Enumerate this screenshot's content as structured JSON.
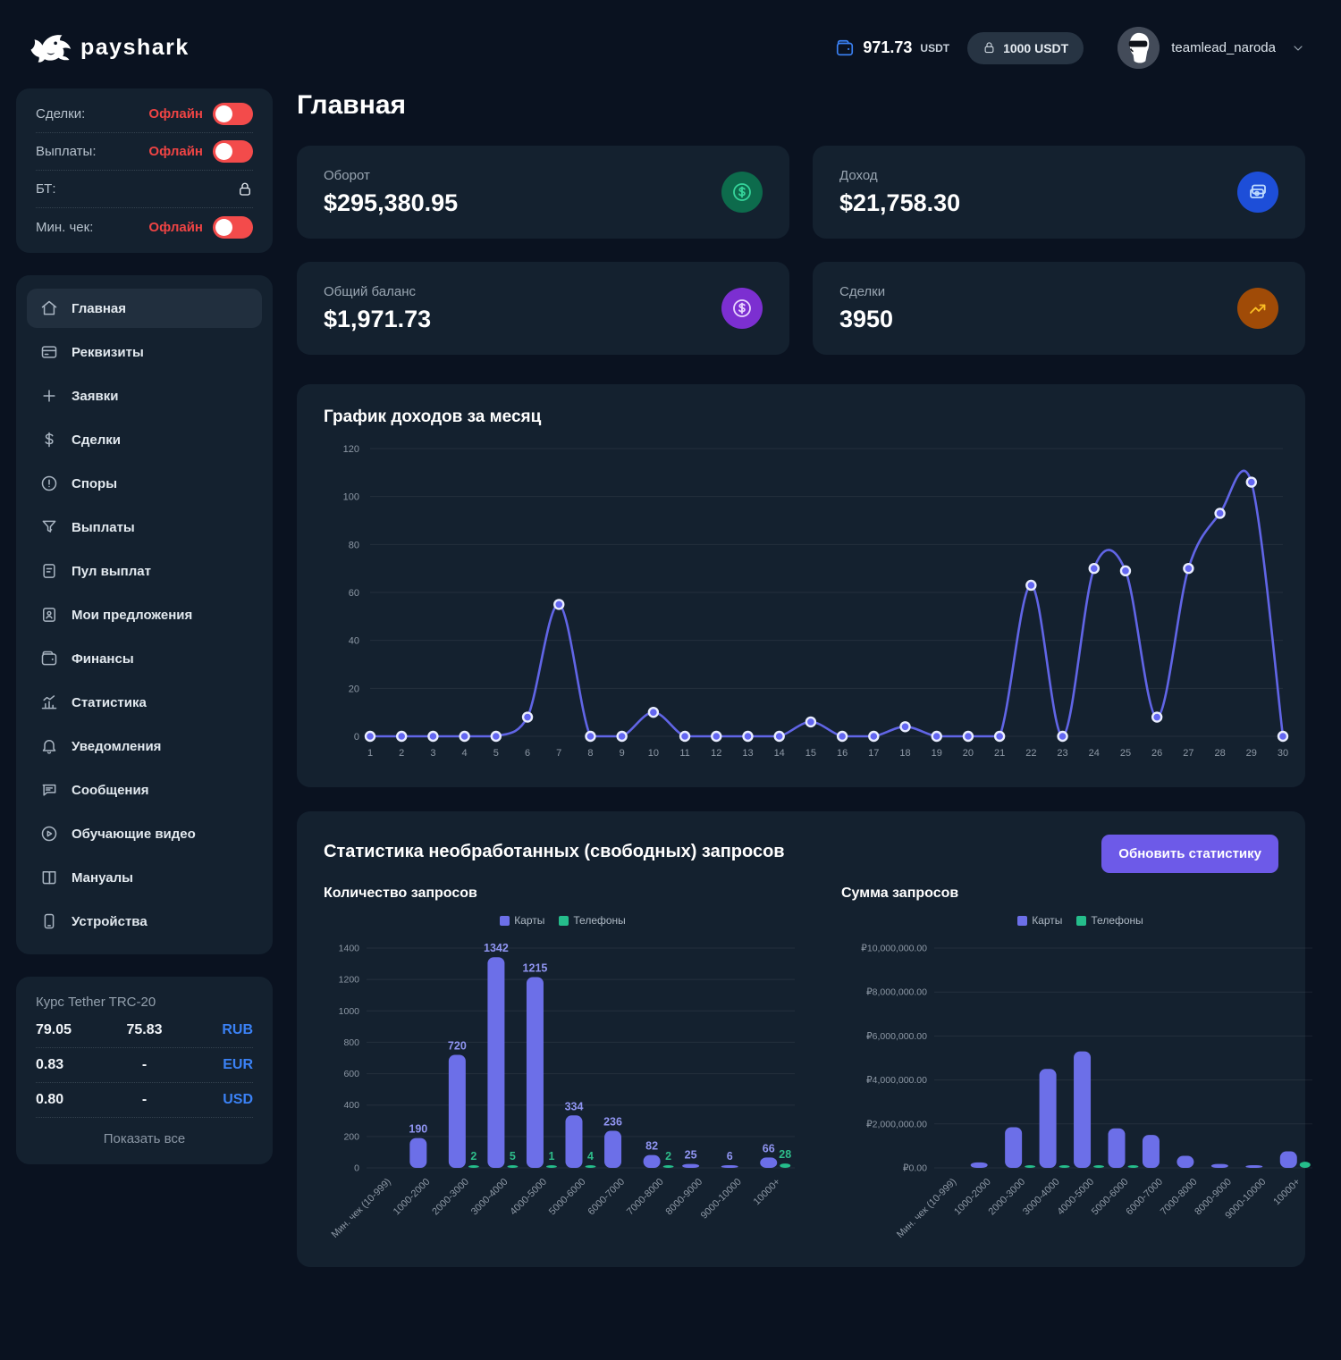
{
  "header": {
    "brand": "payshark",
    "balance_icon": "wallet-icon",
    "balance_value": "971.73",
    "balance_currency": "USDT",
    "locked_icon": "lock-icon",
    "locked_badge": "1000 USDT",
    "username": "teamlead_naroda"
  },
  "colors": {
    "red": "#ef4444",
    "blue": "#3b82f6",
    "indigo": "#6468e8",
    "green": "#25bd8b",
    "button": "#6d5ae8"
  },
  "status_panel": {
    "rows": [
      {
        "label": "Сделки:",
        "state": "Офлайн",
        "control": "toggle",
        "slug": "sdelki"
      },
      {
        "label": "Выплаты:",
        "state": "Офлайн",
        "control": "toggle",
        "slug": "vyplaty"
      },
      {
        "label": "БТ:",
        "state": "",
        "control": "lock",
        "slug": "bt"
      },
      {
        "label": "Мин. чек:",
        "state": "Офлайн",
        "control": "toggle",
        "slug": "min-chek"
      }
    ]
  },
  "sidebar": {
    "items": [
      {
        "label": "Главная",
        "icon": "home-icon",
        "slug": "glavnaya",
        "active": true
      },
      {
        "label": "Реквизиты",
        "icon": "card-icon",
        "slug": "rekvizity"
      },
      {
        "label": "Заявки",
        "icon": "plus-icon",
        "slug": "zayavki"
      },
      {
        "label": "Сделки",
        "icon": "dollar-icon",
        "slug": "sdelki"
      },
      {
        "label": "Споры",
        "icon": "alert-icon",
        "slug": "spory"
      },
      {
        "label": "Выплаты",
        "icon": "funnel-icon",
        "slug": "vyplaty"
      },
      {
        "label": "Пул выплат",
        "icon": "document-icon",
        "slug": "pul-vyplat"
      },
      {
        "label": "Мои предложения",
        "icon": "id-icon",
        "slug": "moi-predlozheniya"
      },
      {
        "label": "Финансы",
        "icon": "wallet-icon",
        "slug": "finansy"
      },
      {
        "label": "Статистика",
        "icon": "stats-icon",
        "slug": "statistika"
      },
      {
        "label": "Уведомления",
        "icon": "bell-icon",
        "slug": "uvedomleniya"
      },
      {
        "label": "Сообщения",
        "icon": "chat-icon",
        "slug": "soobshcheniya"
      },
      {
        "label": "Обучающие видео",
        "icon": "play-icon",
        "slug": "obuchayushchie-video"
      },
      {
        "label": "Мануалы",
        "icon": "book-icon",
        "slug": "manualy"
      },
      {
        "label": "Устройства",
        "icon": "device-icon",
        "slug": "ustroystva"
      }
    ]
  },
  "rates": {
    "title": "Курс Tether TRC-20",
    "rows": [
      {
        "buy": "79.05",
        "sell": "75.83",
        "code": "RUB"
      },
      {
        "buy": "0.83",
        "sell": "-",
        "code": "EUR"
      },
      {
        "buy": "0.80",
        "sell": "-",
        "code": "USD"
      }
    ],
    "show_all": "Показать все"
  },
  "main": {
    "title": "Главная",
    "cards": [
      {
        "label": "Оборот",
        "value": "$295,380.95",
        "icon": "dollar-circle-icon",
        "icon_bg": "#0d6b4c",
        "icon_color": "#35d49a",
        "slug": "oborot"
      },
      {
        "label": "Доход",
        "value": "$21,758.30",
        "icon": "cash-icon",
        "icon_bg": "#1d4ed8",
        "icon_color": "#bfdbfe",
        "slug": "dohod"
      },
      {
        "label": "Общий баланс",
        "value": "$1,971.73",
        "icon": "dollar-circle-icon",
        "icon_bg": "#7c2fd1",
        "icon_color": "#e9d5ff",
        "slug": "obshchiy-balans"
      },
      {
        "label": "Сделки",
        "value": "3950",
        "icon": "trend-up-icon",
        "icon_bg": "#a04b07",
        "icon_color": "#fbbf24",
        "slug": "sdelki"
      }
    ]
  },
  "stats_section": {
    "title": "Статистика необработанных (свободных) запросов",
    "button": "Обновить статистику"
  },
  "chart_data": [
    {
      "type": "line",
      "title": "График доходов за месяц",
      "x": [
        1,
        2,
        3,
        4,
        5,
        6,
        7,
        8,
        9,
        10,
        11,
        12,
        13,
        14,
        15,
        16,
        17,
        18,
        19,
        20,
        21,
        22,
        23,
        24,
        25,
        26,
        27,
        28,
        29,
        30
      ],
      "values": [
        0,
        0,
        0,
        0,
        0,
        8,
        55,
        0,
        0,
        10,
        0,
        0,
        0,
        0,
        6,
        0,
        0,
        4,
        0,
        0,
        0,
        63,
        0,
        70,
        69,
        8,
        70,
        93,
        106,
        0
      ],
      "ylim": [
        0,
        120
      ],
      "yticks": [
        0,
        20,
        40,
        60,
        80,
        100,
        120
      ],
      "line_color": "#6165e6",
      "marker_fill": "#6366f1",
      "marker_ring": "#e9edff",
      "grid": true,
      "legend_position": "none"
    },
    {
      "type": "bar",
      "title": "Количество запросов",
      "categories": [
        "Мин. чек (10-999)",
        "1000-2000",
        "2000-3000",
        "3000-4000",
        "4000-5000",
        "5000-6000",
        "6000-7000",
        "7000-8000",
        "8000-9000",
        "9000-10000",
        "10000+"
      ],
      "series": [
        {
          "name": "Карты",
          "color": "#6c6fe8",
          "label_color": "#9095f2",
          "values": [
            0,
            190,
            720,
            1342,
            1215,
            334,
            236,
            82,
            25,
            6,
            66
          ]
        },
        {
          "name": "Телефоны",
          "color": "#25bd8b",
          "label_color": "#2ebd8a",
          "values": [
            0,
            0,
            2,
            5,
            1,
            4,
            0,
            2,
            0,
            0,
            28
          ]
        }
      ],
      "ylim": [
        0,
        1400
      ],
      "ytick_step": 200,
      "show_value_labels": true,
      "legend_position": "top",
      "grid": true
    },
    {
      "type": "bar",
      "title": "Сумма запросов",
      "categories": [
        "Мин. чек (10-999)",
        "1000-2000",
        "2000-3000",
        "3000-4000",
        "4000-5000",
        "5000-6000",
        "6000-7000",
        "7000-8000",
        "8000-9000",
        "9000-10000",
        "10000+"
      ],
      "series": [
        {
          "name": "Карты",
          "color": "#6c6fe8",
          "label_color": "#9095f2",
          "values": [
            0,
            250000,
            1850000,
            4500000,
            5300000,
            1800000,
            1500000,
            550000,
            180000,
            50000,
            750000
          ]
        },
        {
          "name": "Телефоны",
          "color": "#25bd8b",
          "label_color": "#2ebd8a",
          "values": [
            0,
            0,
            10000,
            30000,
            40000,
            20000,
            0,
            0,
            0,
            0,
            280000
          ]
        }
      ],
      "ylim": [
        0,
        10000000
      ],
      "ytick_step": 2000000,
      "currency_prefix": "₽",
      "show_value_labels": false,
      "legend_position": "top",
      "grid": true
    }
  ]
}
